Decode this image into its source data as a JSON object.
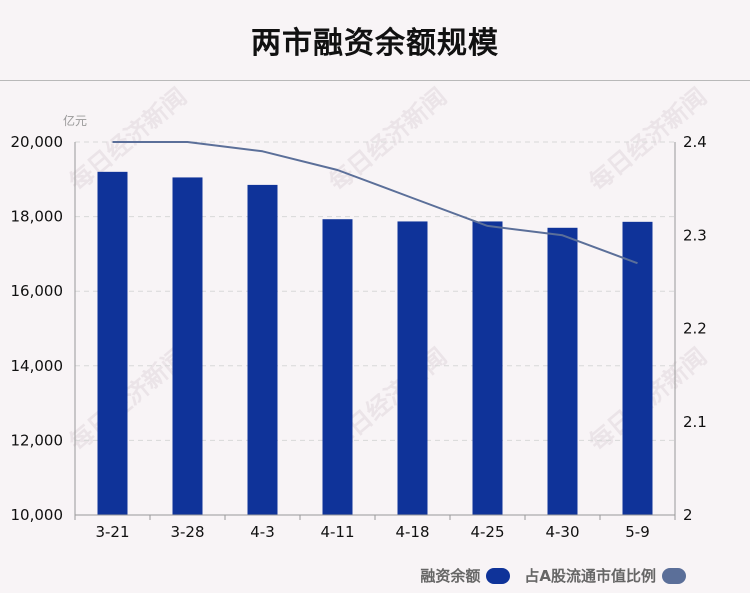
{
  "title": "两市融资余额规模",
  "watermark": "每日经济新闻",
  "chart_data": {
    "type": "bar",
    "categories": [
      "3-21",
      "3-28",
      "4-3",
      "4-11",
      "4-18",
      "4-25",
      "4-30",
      "5-9"
    ],
    "left_axis": {
      "unit": "亿元",
      "ylim": [
        10000,
        20000
      ],
      "ticks": [
        "10,000",
        "12,000",
        "14,000",
        "16,000",
        "18,000",
        "20,000"
      ],
      "tick_values": [
        10000,
        12000,
        14000,
        16000,
        18000,
        20000
      ]
    },
    "right_axis": {
      "ylim": [
        2.0,
        2.4
      ],
      "ticks": [
        "2",
        "2.1",
        "2.2",
        "2.3",
        "2.4"
      ],
      "tick_values": [
        2.0,
        2.1,
        2.2,
        2.3,
        2.4
      ]
    },
    "series": [
      {
        "name": "融资余额",
        "type": "bar",
        "axis": "left",
        "color": "#0f3399",
        "values": [
          19200,
          19050,
          18850,
          17930,
          17870,
          17870,
          17700,
          17860
        ]
      },
      {
        "name": "占A股流通市值比例",
        "type": "line",
        "axis": "right",
        "color": "#5b6f99",
        "values": [
          2.4,
          2.4,
          2.39,
          2.37,
          2.34,
          2.31,
          2.3,
          2.27
        ]
      }
    ],
    "grid": true,
    "legend_position": "bottom-right"
  }
}
